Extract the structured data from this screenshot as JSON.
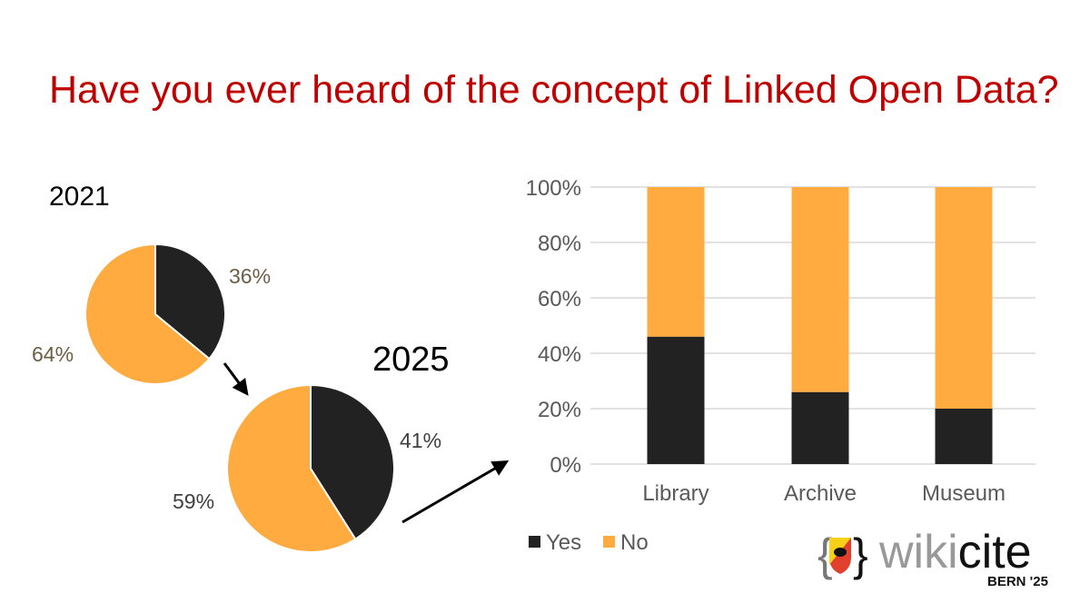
{
  "title": "Have you ever heard of the concept of Linked Open Data?",
  "colors": {
    "yes": "#222222",
    "no": "#FFAB40",
    "title": "#c00000"
  },
  "chart_data": [
    {
      "type": "pie",
      "title": "2021",
      "slices": [
        {
          "name": "Yes",
          "value": 36,
          "label": "36%"
        },
        {
          "name": "No",
          "value": 64,
          "label": "64%"
        }
      ]
    },
    {
      "type": "pie",
      "title": "2025",
      "slices": [
        {
          "name": "Yes",
          "value": 41,
          "label": "41%"
        },
        {
          "name": "No",
          "value": 59,
          "label": "59%"
        }
      ]
    },
    {
      "type": "bar",
      "stacked": true,
      "categories": [
        "Library",
        "Archive",
        "Museum"
      ],
      "series": [
        {
          "name": "Yes",
          "values": [
            46,
            26,
            20
          ]
        },
        {
          "name": "No",
          "values": [
            54,
            74,
            80
          ]
        }
      ],
      "ylim": [
        0,
        100
      ],
      "yticks": [
        "0%",
        "20%",
        "40%",
        "60%",
        "80%",
        "100%"
      ],
      "grid": true,
      "legend": "bottom-left"
    }
  ],
  "logo": {
    "text": "wikicite",
    "subtitle": "BERN '25"
  }
}
